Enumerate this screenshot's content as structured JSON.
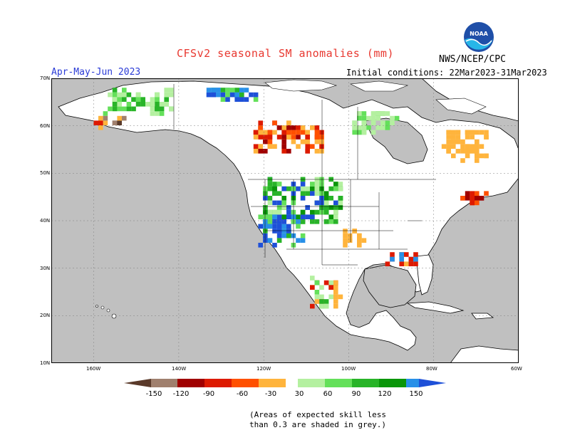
{
  "title": "CFSv2 seasonal SM anomalies (mm)",
  "season": "Apr-May-Jun 2023",
  "initial_conditions": "Initial conditions: 22Mar2023-31Mar2023",
  "agency": "NWS/NCEP/CPC",
  "logo_text": "NOAA",
  "lat_labels": [
    "70N",
    "60N",
    "50N",
    "40N",
    "30N",
    "20N",
    "10N"
  ],
  "lon_labels": [
    "160W",
    "140W",
    "120W",
    "100W",
    "80W",
    "60W"
  ],
  "colorbar": {
    "labels": [
      "-150",
      "-120",
      "-90",
      "-60",
      "-30",
      "30",
      "60",
      "90",
      "120",
      "150"
    ],
    "colors": [
      "#5a3a2a",
      "#a0806e",
      "#a00000",
      "#dd1a00",
      "#ff5000",
      "#ffb43c",
      "#ffffff",
      "#b4f0a0",
      "#64e05a",
      "#28b428",
      "#0a960a",
      "#2890e8",
      "#1e50d8"
    ]
  },
  "note": [
    "(Areas of expected skill less",
    "than 0.3 are shaded in grey.)"
  ],
  "colors": {
    "ocean": "#ffffff",
    "no_skill": "#c0c0c0",
    "land": "#ffffff"
  }
}
